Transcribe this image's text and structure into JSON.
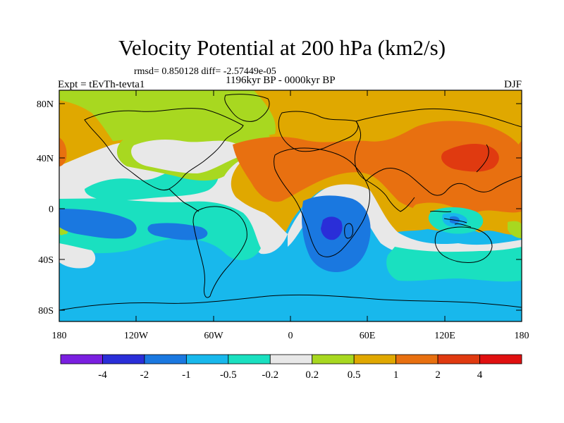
{
  "title": "Velocity Potential at 200 hPa (km2/s)",
  "stats": "rmsd= 0.850128 diff= -2.57449e-05",
  "period": "1196kyr BP - 0000kyr BP",
  "expt": "Expt = tEvTh-tevta1",
  "season": "DJF",
  "lat_ticks": [
    "80N",
    "40N",
    "0",
    "40S",
    "80S"
  ],
  "lon_ticks": [
    "180",
    "120W",
    "60W",
    "0",
    "60E",
    "120E",
    "180"
  ],
  "colorbar": {
    "labels": [
      "-4",
      "-2",
      "-1",
      "-0.5",
      "-0.2",
      "0.2",
      "0.5",
      "1",
      "2",
      "4"
    ],
    "colors": [
      "#7a1fe0",
      "#2a2ed8",
      "#1a78e0",
      "#18b8ec",
      "#1ae0c0",
      "#e8e8e8",
      "#a8d820",
      "#e0a800",
      "#e87010",
      "#e03a10",
      "#e01010"
    ]
  }
}
